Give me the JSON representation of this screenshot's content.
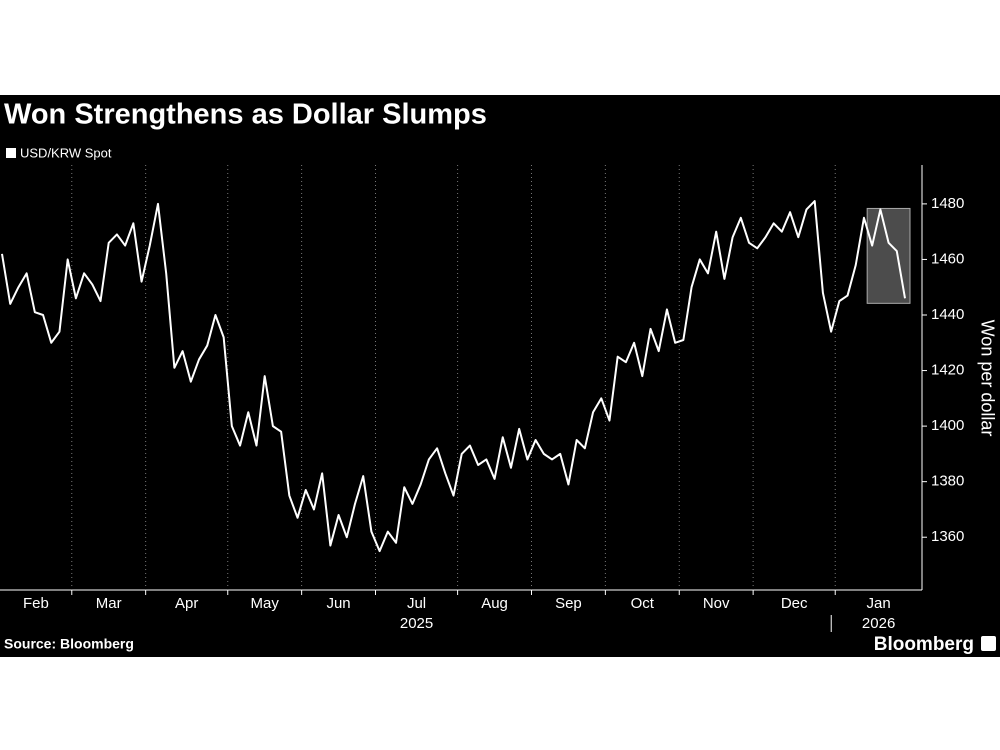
{
  "chart_data": {
    "type": "line",
    "title": "Won Strengthens as Dollar Slumps",
    "y_label": "Won per dollar",
    "source": "Source: Bloomberg",
    "brand": "Bloomberg",
    "categories": [
      "Feb",
      null,
      null,
      null,
      null,
      null,
      null,
      null,
      null,
      "Mar",
      null,
      null,
      null,
      null,
      null,
      null,
      null,
      null,
      "Apr",
      null,
      null,
      null,
      null,
      null,
      null,
      null,
      null,
      null,
      "May",
      null,
      null,
      null,
      null,
      null,
      null,
      null,
      null,
      "Jun",
      null,
      null,
      null,
      null,
      null,
      null,
      null,
      null,
      "Jul",
      null,
      null,
      null,
      null,
      null,
      null,
      null,
      null,
      null,
      "Aug",
      null,
      null,
      null,
      null,
      null,
      null,
      null,
      null,
      "Sep",
      null,
      null,
      null,
      null,
      null,
      null,
      null,
      null,
      "Oct",
      null,
      null,
      null,
      null,
      null,
      null,
      null,
      null,
      "Nov",
      null,
      null,
      null,
      null,
      null,
      null,
      null,
      null,
      "Dec",
      null,
      null,
      null,
      null,
      null,
      null,
      null,
      null,
      null,
      "Jan",
      null,
      null,
      null,
      null,
      null,
      null,
      null,
      null
    ],
    "year_labels": [
      {
        "year": "2025",
        "month": "Jul"
      },
      {
        "year": "2026",
        "month": "Jan"
      }
    ],
    "series": [
      {
        "name": "USD/KRW Spot",
        "color": "#ffffff",
        "values": [
          1462,
          1444,
          1450,
          1455,
          1441,
          1440,
          1430,
          1434,
          1460,
          1446,
          1455,
          1451,
          1445,
          1466,
          1469,
          1465,
          1473,
          1452,
          1465,
          1480,
          1455,
          1421,
          1427,
          1416,
          1424,
          1429,
          1440,
          1432,
          1400,
          1393,
          1405,
          1393,
          1418,
          1400,
          1398,
          1375,
          1367,
          1377,
          1370,
          1383,
          1357,
          1368,
          1360,
          1372,
          1382,
          1362,
          1355,
          1362,
          1358,
          1378,
          1372,
          1379,
          1388,
          1392,
          1383,
          1375,
          1390,
          1393,
          1386,
          1388,
          1381,
          1396,
          1385,
          1399,
          1388,
          1395,
          1390,
          1388,
          1390,
          1379,
          1395,
          1392,
          1405,
          1410,
          1402,
          1425,
          1423,
          1430,
          1418,
          1435,
          1427,
          1442,
          1430,
          1431,
          1450,
          1460,
          1455,
          1470,
          1453,
          1468,
          1475,
          1466,
          1464,
          1468,
          1473,
          1470,
          1477,
          1468,
          1478,
          1481,
          1448,
          1434,
          1445,
          1447,
          1458,
          1475,
          1465,
          1478,
          1466,
          1463,
          1446
        ]
      }
    ],
    "ylim": [
      1341,
      1494
    ],
    "yticks": [
      1360,
      1380,
      1400,
      1420,
      1440,
      1460,
      1480
    ],
    "axis_side": "right",
    "grid_x": true,
    "highlight_last": 5
  }
}
